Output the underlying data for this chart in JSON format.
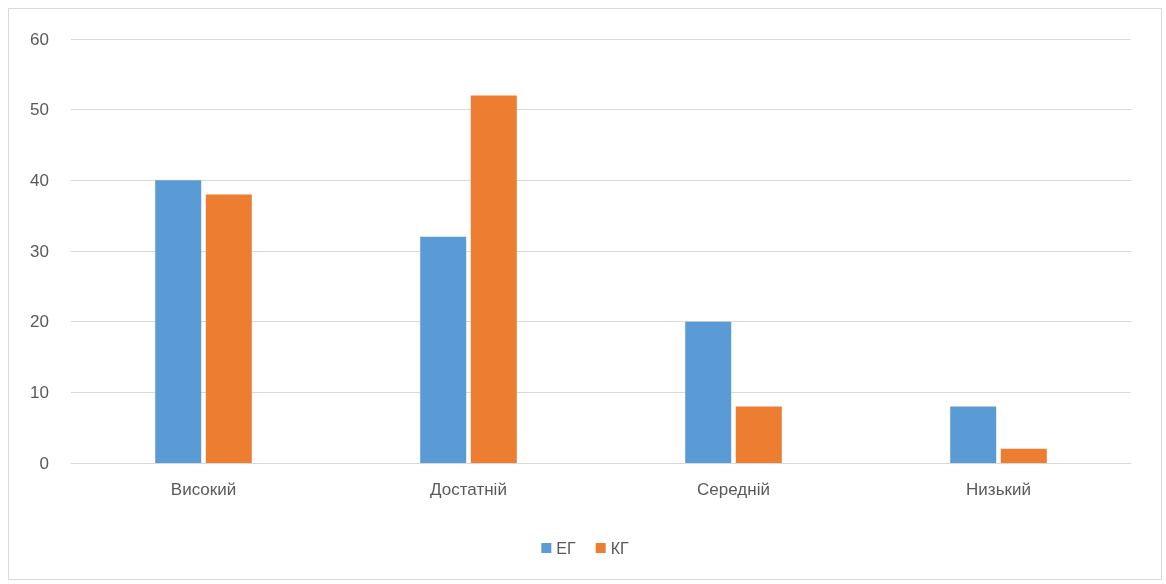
{
  "chart_data": {
    "type": "bar",
    "categories": [
      "Високий",
      "Достатній",
      "Середній",
      "Низький"
    ],
    "series": [
      {
        "name": "ЕГ",
        "color": "#5b9bd5",
        "values": [
          40,
          32,
          20,
          8
        ]
      },
      {
        "name": "КГ",
        "color": "#ed7d31",
        "values": [
          38,
          52,
          8,
          2
        ]
      }
    ],
    "ylim": [
      0,
      60
    ],
    "yticks": [
      0,
      10,
      20,
      30,
      40,
      50,
      60
    ],
    "grid": "y",
    "legend": "bottom"
  }
}
